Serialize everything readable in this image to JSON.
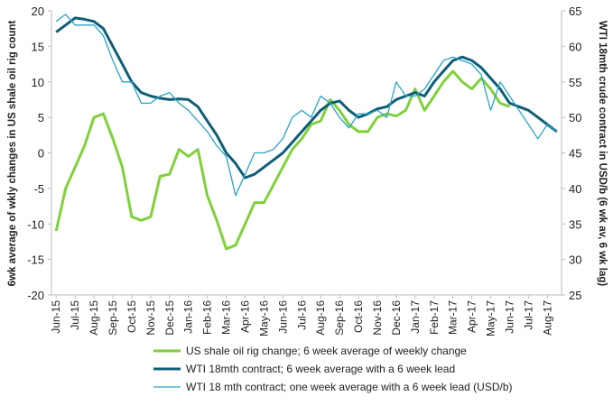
{
  "chart_data": {
    "type": "line",
    "y_label": "6wk average of wkly changes in US shale oil rig count",
    "y2_label": "WTI 18mth crude contract in USD/b (6 wk av, 6 wk lag)",
    "categories": [
      "Jun-15",
      null,
      "Jul-15",
      null,
      "Aug-15",
      null,
      "Sep-15",
      null,
      "Oct-15",
      null,
      "Nov-15",
      null,
      "Dec-15",
      null,
      "Jan-16",
      null,
      "Feb-16",
      null,
      "Mar-16",
      null,
      "Apr-16",
      null,
      "May-16",
      null,
      "Jun-16",
      null,
      "Jul-16",
      null,
      "Aug-16",
      null,
      "Sep-16",
      null,
      "Oct-16",
      null,
      "Nov-16",
      null,
      "Dec-16",
      null,
      "Jan-17",
      null,
      "Feb-17",
      null,
      "Mar-17",
      null,
      "Apr-17",
      null,
      "May-17",
      null,
      "Jun-17",
      null,
      "Jul-17",
      null,
      "Aug-17",
      null
    ],
    "ylim": [
      -20,
      20
    ],
    "yticks": [
      -20,
      -15,
      -10,
      -5,
      0,
      5,
      10,
      15,
      20
    ],
    "y2lim": [
      25,
      65
    ],
    "y2ticks": [
      25,
      30,
      35,
      40,
      45,
      50,
      55,
      60,
      65
    ],
    "series": [
      {
        "name": "US shale oil rig change; 6 week average of weekly change",
        "color": "#7fd13b",
        "width": 3,
        "values": [
          -11,
          -5,
          -2,
          1,
          5,
          5.5,
          2,
          -2,
          -9,
          -9.5,
          -9,
          -3.3,
          -3,
          0.5,
          -0.5,
          0.5,
          -6,
          -9.5,
          -13.5,
          -13,
          -10,
          -7,
          -7,
          -4.5,
          -2,
          0.5,
          2,
          4,
          4.5,
          7.5,
          6,
          4,
          3,
          3,
          5,
          5.5,
          5.2,
          6,
          9,
          6,
          8,
          10,
          11.5,
          10,
          9,
          10.5,
          9,
          7,
          6.5,
          null,
          null,
          null,
          null,
          null
        ]
      },
      {
        "name": "WTI 18mth contract; 6 week average with a 6 week lead",
        "color": "#0f5e78",
        "width": 3,
        "axis": "y2",
        "values": [
          62,
          63,
          64,
          63.8,
          63.5,
          62.5,
          60,
          57.5,
          55,
          53.5,
          53,
          52.7,
          52.5,
          52.6,
          52.5,
          51.5,
          49.5,
          47.5,
          45,
          43.5,
          41.5,
          42,
          43,
          44,
          45,
          46.5,
          48,
          49.5,
          51,
          52,
          52.3,
          51,
          50,
          50.5,
          51.2,
          51.5,
          52.5,
          53,
          53.5,
          53,
          55,
          56.5,
          58,
          58.5,
          58,
          57,
          55.5,
          54,
          52,
          51.5,
          51,
          50,
          49,
          48
        ]
      },
      {
        "name": "WTI 18 mth contract; one week average with a 6 week lead (USD/b)",
        "color": "#2aa3c7",
        "width": 1.3,
        "axis": "y2",
        "values": [
          63.5,
          64.5,
          63,
          63,
          63,
          61.5,
          58,
          55,
          55,
          52,
          52,
          53,
          53.5,
          52,
          51,
          49.5,
          48,
          46,
          44.5,
          39,
          42,
          45,
          45,
          45.5,
          47,
          50,
          51,
          50,
          53,
          52,
          50,
          48.5,
          50.5,
          50.5,
          51,
          50,
          55,
          53,
          53,
          54,
          56,
          58,
          58.5,
          58,
          57.5,
          56,
          51,
          55,
          53,
          51,
          49,
          47,
          49,
          48
        ]
      }
    ]
  }
}
